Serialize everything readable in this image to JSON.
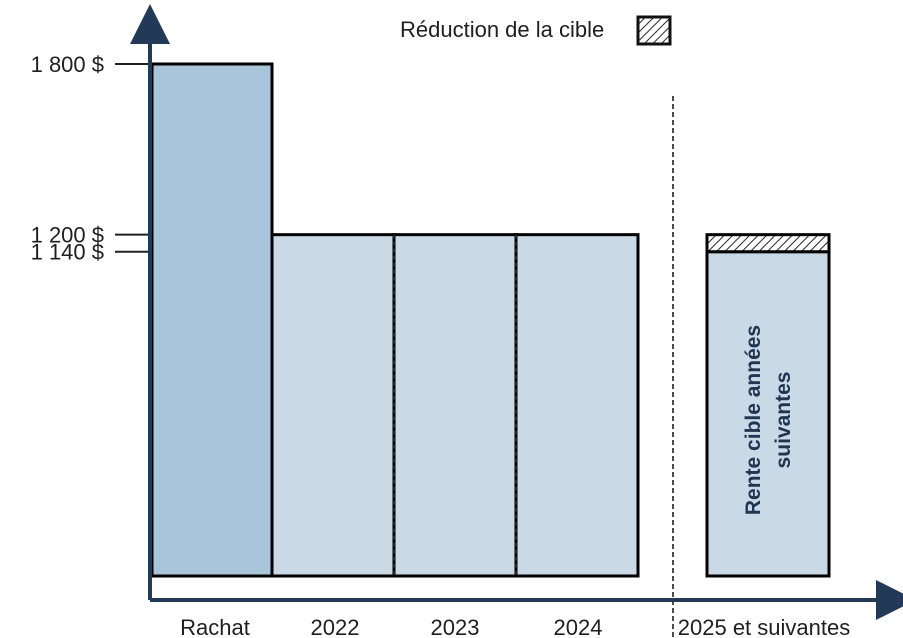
{
  "chart_data": {
    "type": "bar",
    "categories": [
      "Rachat",
      "2022",
      "2023",
      "2024",
      "2025 et suivantes"
    ],
    "series": [
      {
        "values": [
          1800,
          1200,
          1200,
          1200,
          1140
        ]
      },
      {
        "name": "Réduction de la cible",
        "values": [
          0,
          0,
          0,
          0,
          60
        ]
      }
    ],
    "y_ticks": [
      {
        "value": 1800,
        "label": "1 800  $"
      },
      {
        "value": 1200,
        "label": "1 200  $"
      },
      {
        "value": 1140,
        "label": "1 140  $"
      }
    ],
    "legend": {
      "label": "Réduction de la cible",
      "placement": "top"
    },
    "annotation": {
      "line1": "Rente cible années",
      "line2": "suivantes"
    },
    "ylim": [
      0,
      1800
    ],
    "colors": {
      "rachat_fill": "#a9c5da",
      "years_fill": "#c9d9e5",
      "future_fill": "#c9d9e5",
      "reduction_fill": "#ffffff",
      "reduction_hatch": "#222222",
      "axis": "#223a57",
      "stroke": "#000000",
      "text": "#1f1f1f",
      "annotation_text": "#1f3552"
    }
  }
}
